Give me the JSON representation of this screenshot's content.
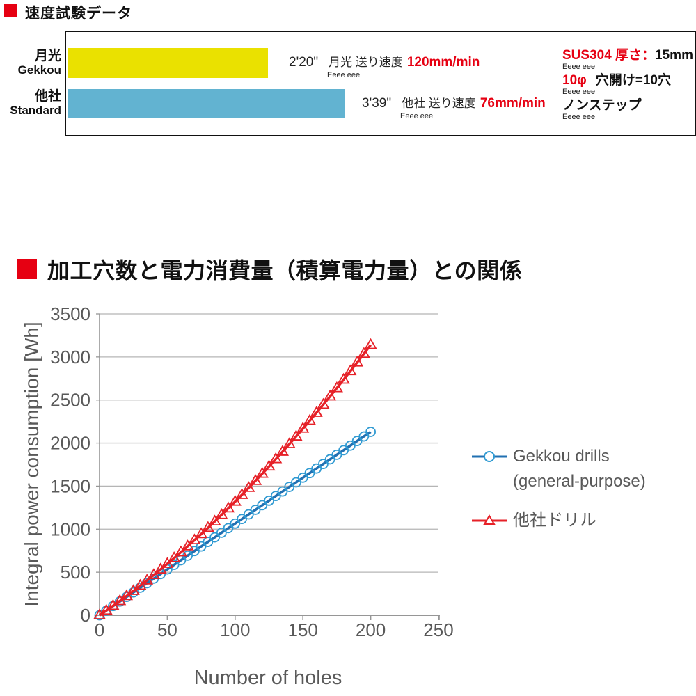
{
  "accent_color": "#e60012",
  "section1": {
    "heading": "速度試験データ",
    "bars": [
      {
        "label_ja": "月光",
        "label_en": "Gekkou",
        "color": "#eae100",
        "width_pct": 31.8,
        "time": "2'20\"",
        "desc": "月光 送り速度",
        "speed": "120mm/min",
        "sub": "Eeee eee"
      },
      {
        "label_ja": "他社",
        "label_en": "Standard",
        "color": "#62b3d1",
        "width_pct": 44.0,
        "time": "3'39\"",
        "desc": "他社 送り速度",
        "speed": "76mm/min",
        "sub": "Eeee eee"
      }
    ],
    "conditions": [
      {
        "red_text": "SUS304 厚さ：",
        "black_text": "15mm",
        "sub": "Eeee eee"
      },
      {
        "red_text": "10φ",
        "black_text": "穴開け=10穴",
        "sub": "Eeee eee"
      },
      {
        "red_text": "",
        "black_text": "ノンステップ",
        "sub": "Eeee eee"
      }
    ]
  },
  "section2": {
    "heading": "加工穴数と電力消費量（積算電力量）との関係"
  },
  "chart_data": {
    "type": "line",
    "title": "加工穴数と電力消費量（積算電力量）との関係",
    "xlabel": "Number of holes",
    "ylabel": "Integral power consumption [Wh]",
    "xlim": [
      0,
      250
    ],
    "ylim": [
      0,
      3500
    ],
    "x_ticks": [
      0,
      50,
      100,
      150,
      200,
      250
    ],
    "y_ticks": [
      0,
      500,
      1000,
      1500,
      2000,
      2500,
      3000,
      3500
    ],
    "grid": true,
    "legend_position": "right",
    "marker_step_holes": 5,
    "x": [
      0,
      5,
      10,
      15,
      20,
      25,
      30,
      35,
      40,
      45,
      50,
      55,
      60,
      65,
      70,
      75,
      80,
      85,
      90,
      95,
      100,
      105,
      110,
      115,
      120,
      125,
      130,
      135,
      140,
      145,
      150,
      155,
      160,
      165,
      170,
      175,
      180,
      185,
      190,
      195,
      200
    ],
    "series": [
      {
        "name": "Gekkou drills (general-purpose)",
        "marker": "circle",
        "color": "#2170b2",
        "marker_color": "#2f9ad2",
        "values": [
          0,
          53,
          107,
          160,
          213,
          266,
          320,
          373,
          426,
          479,
          533,
          586,
          639,
          692,
          746,
          799,
          852,
          905,
          959,
          1012,
          1065,
          1118,
          1172,
          1225,
          1278,
          1331,
          1385,
          1438,
          1491,
          1544,
          1598,
          1651,
          1704,
          1757,
          1811,
          1864,
          1917,
          1970,
          2024,
          2077,
          2130
        ]
      },
      {
        "name": "他社ドリル",
        "marker": "triangle",
        "color": "#e62128",
        "marker_color": "#e62128",
        "values": [
          0,
          54,
          110,
          166,
          224,
          283,
          344,
          405,
          468,
          532,
          598,
          664,
          732,
          801,
          872,
          943,
          1016,
          1090,
          1166,
          1242,
          1320,
          1399,
          1480,
          1561,
          1644,
          1728,
          1814,
          1900,
          1988,
          2077,
          2168,
          2259,
          2352,
          2446,
          2542,
          2638,
          2736,
          2835,
          2936,
          3037,
          3140
        ]
      }
    ]
  }
}
